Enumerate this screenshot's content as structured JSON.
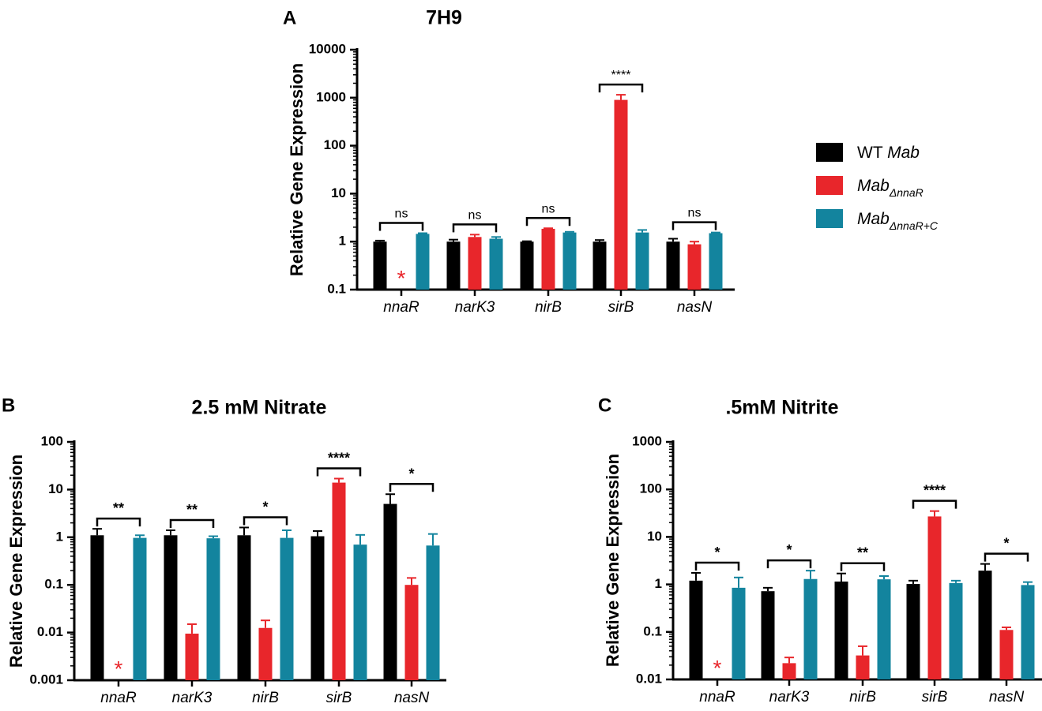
{
  "legend": {
    "items": [
      {
        "name": "wt",
        "prefix": "WT ",
        "italic": "Mab",
        "sub": "",
        "color": "#000000"
      },
      {
        "name": "knockout",
        "prefix": "",
        "italic": "Mab",
        "sub": "ΔnnaR",
        "color": "#e8262b"
      },
      {
        "name": "complement",
        "prefix": "",
        "italic": "Mab",
        "sub": "ΔnnaR+C",
        "color": "#13849e"
      }
    ]
  },
  "undetected_marker": "*",
  "chart_data": [
    {
      "panel": "A",
      "type": "bar",
      "title": "7H9",
      "ylabel": "Relative Gene Expression",
      "yscale": "log",
      "ylim": [
        0.1,
        10000
      ],
      "yticks": [
        "0.1",
        "1",
        "10",
        "100",
        "1000",
        "10000"
      ],
      "categories": [
        "nnaR",
        "narK3",
        "nirB",
        "sirB",
        "nasN"
      ],
      "series": [
        {
          "name": "WT Mab",
          "values": [
            1.0,
            1.0,
            1.0,
            1.0,
            1.0
          ],
          "errors": [
            1.05,
            1.1,
            1.02,
            1.08,
            1.15
          ]
        },
        {
          "name": "MabΔnnaR",
          "values": [
            null,
            1.25,
            1.85,
            900,
            0.88
          ],
          "errors": [
            null,
            1.4,
            1.9,
            1150,
            1.0
          ]
        },
        {
          "name": "MabΔnnaR+C",
          "values": [
            1.45,
            1.15,
            1.55,
            1.55,
            1.5
          ],
          "errors": [
            1.5,
            1.25,
            1.6,
            1.75,
            1.55
          ]
        }
      ],
      "significance": [
        "ns",
        "ns",
        "ns",
        "****",
        "ns"
      ],
      "sig_bold": false
    },
    {
      "panel": "B",
      "type": "bar",
      "title": "2.5 mM Nitrate",
      "ylabel": "Relative Gene Expression",
      "yscale": "log",
      "ylim": [
        0.001,
        100
      ],
      "yticks": [
        "0.001",
        "0.01",
        "0.1",
        "1",
        "10",
        "100"
      ],
      "categories": [
        "nnaR",
        "narK3",
        "nirB",
        "sirB",
        "nasN"
      ],
      "series": [
        {
          "name": "WT Mab",
          "values": [
            1.1,
            1.1,
            1.1,
            1.05,
            5.0
          ],
          "errors": [
            1.5,
            1.4,
            1.6,
            1.35,
            8.0
          ]
        },
        {
          "name": "MabΔnnaR",
          "values": [
            null,
            0.0095,
            0.0125,
            14,
            0.1
          ],
          "errors": [
            null,
            0.015,
            0.018,
            17,
            0.14
          ]
        },
        {
          "name": "MabΔnnaR+C",
          "values": [
            0.97,
            0.95,
            0.97,
            0.7,
            0.67
          ],
          "errors": [
            1.1,
            1.05,
            1.4,
            1.12,
            1.17
          ]
        }
      ],
      "significance": [
        "**",
        "**",
        "*",
        "****",
        "*"
      ],
      "sig_bold": true
    },
    {
      "panel": "C",
      "type": "bar",
      "title": ".5mM Nitrite",
      "ylabel": "Relative Gene Expression",
      "yscale": "log",
      "ylim": [
        0.01,
        1000
      ],
      "yticks": [
        "0.01",
        "0.1",
        "1",
        "10",
        "100",
        "1000"
      ],
      "categories": [
        "nnaR",
        "narK3",
        "nirB",
        "sirB",
        "nasN"
      ],
      "series": [
        {
          "name": "WT Mab",
          "values": [
            1.2,
            0.72,
            1.15,
            1.02,
            1.95
          ],
          "errors": [
            1.75,
            0.85,
            1.7,
            1.2,
            2.7
          ]
        },
        {
          "name": "MabΔnnaR",
          "values": [
            null,
            0.022,
            0.032,
            27,
            0.11
          ],
          "errors": [
            null,
            0.029,
            0.05,
            35,
            0.125
          ]
        },
        {
          "name": "MabΔnnaR+C",
          "values": [
            0.85,
            1.3,
            1.28,
            1.07,
            0.97
          ],
          "errors": [
            1.4,
            1.95,
            1.5,
            1.2,
            1.12
          ]
        }
      ],
      "significance": [
        "*",
        "*",
        "**",
        "****",
        "*"
      ],
      "sig_bold": true
    }
  ]
}
